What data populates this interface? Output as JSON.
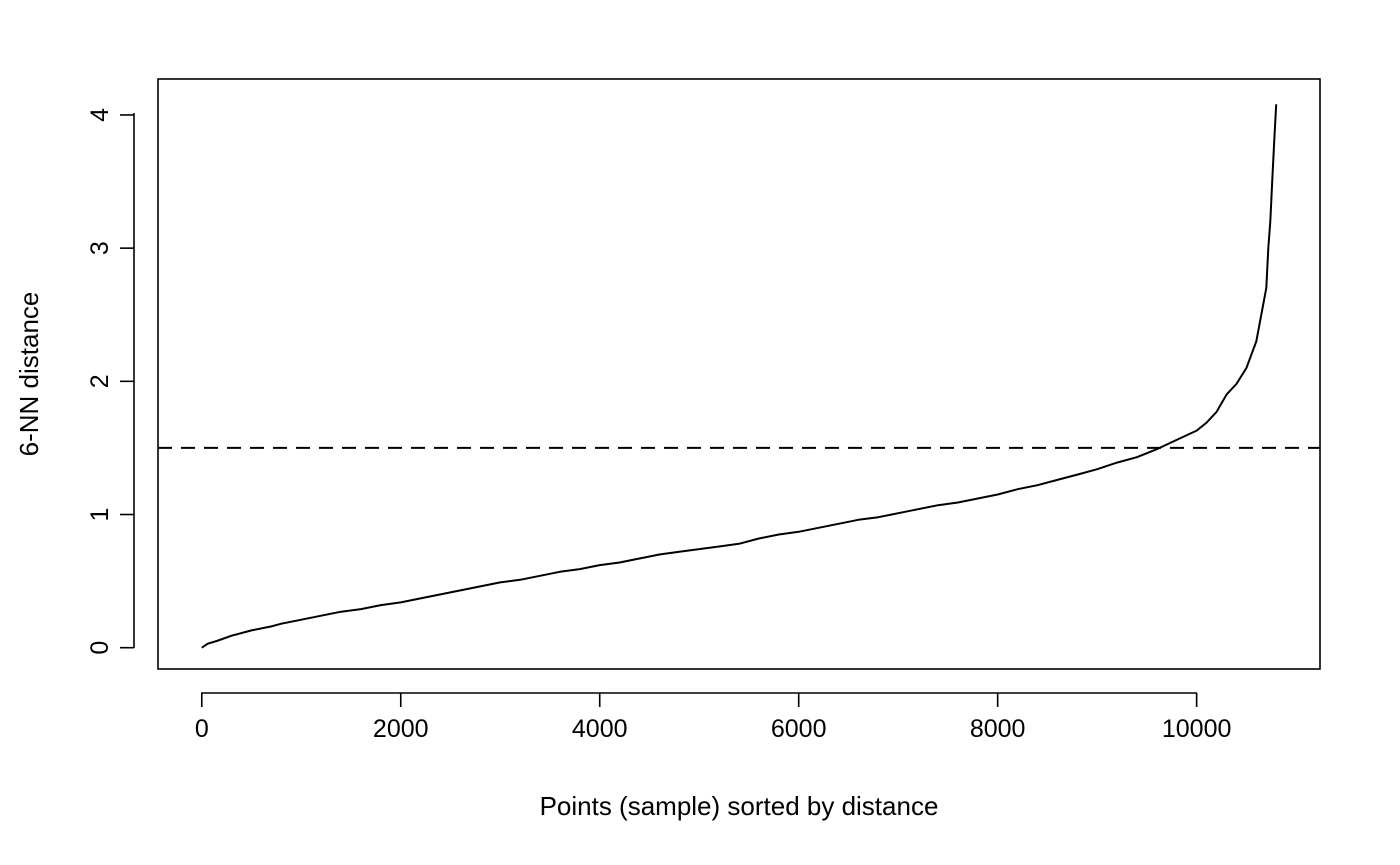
{
  "chart_data": {
    "type": "line",
    "title": "",
    "xlabel": "Points (sample) sorted by distance",
    "ylabel": "6-NN distance",
    "xlim": [
      -440,
      11240
    ],
    "ylim": [
      -0.16,
      4.27
    ],
    "x_ticks": [
      0,
      2000,
      4000,
      6000,
      8000,
      10000
    ],
    "x_tick_labels": [
      "0",
      "2000",
      "4000",
      "6000",
      "8000",
      "10000"
    ],
    "y_ticks": [
      0,
      1,
      2,
      3,
      4
    ],
    "y_tick_labels": [
      "0",
      "1",
      "2",
      "3",
      "4"
    ],
    "grid": false,
    "legend": "none",
    "reference_line": {
      "orientation": "horizontal",
      "y": 1.5,
      "style": "dashed"
    },
    "series": [
      {
        "x": [
          0,
          60,
          150,
          300,
          500,
          700,
          800,
          1000,
          1200,
          1400,
          1600,
          1800,
          2000,
          2200,
          2400,
          2600,
          2800,
          3000,
          3200,
          3400,
          3600,
          3800,
          4000,
          4200,
          4400,
          4600,
          4800,
          5000,
          5200,
          5400,
          5600,
          5800,
          6000,
          6200,
          6400,
          6600,
          6800,
          7000,
          7200,
          7400,
          7600,
          7800,
          8000,
          8200,
          8400,
          8600,
          8800,
          9000,
          9200,
          9400,
          9600,
          9800,
          10000,
          10100,
          10200,
          10300,
          10400,
          10500,
          10600,
          10650,
          10700,
          10720,
          10740,
          10760,
          10780,
          10800
        ],
        "y": [
          0,
          0.03,
          0.05,
          0.09,
          0.13,
          0.16,
          0.18,
          0.21,
          0.24,
          0.27,
          0.29,
          0.32,
          0.34,
          0.37,
          0.4,
          0.43,
          0.46,
          0.49,
          0.51,
          0.54,
          0.57,
          0.59,
          0.62,
          0.64,
          0.67,
          0.7,
          0.72,
          0.74,
          0.76,
          0.78,
          0.82,
          0.85,
          0.87,
          0.9,
          0.93,
          0.96,
          0.98,
          1.01,
          1.04,
          1.07,
          1.09,
          1.12,
          1.15,
          1.19,
          1.22,
          1.26,
          1.3,
          1.34,
          1.39,
          1.43,
          1.49,
          1.56,
          1.63,
          1.69,
          1.77,
          1.9,
          1.98,
          2.1,
          2.3,
          2.5,
          2.7,
          3.0,
          3.2,
          3.5,
          3.8,
          4.08
        ]
      }
    ]
  }
}
